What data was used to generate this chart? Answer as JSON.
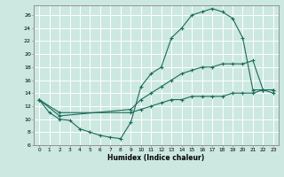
{
  "xlabel": "Humidex (Indice chaleur)",
  "background_color": "#cce8e0",
  "line_color": "#1a6b5a",
  "xlim": [
    -0.5,
    23.5
  ],
  "ylim": [
    6,
    27.5
  ],
  "xticks": [
    0,
    1,
    2,
    3,
    4,
    5,
    6,
    7,
    8,
    9,
    10,
    11,
    12,
    13,
    14,
    15,
    16,
    17,
    18,
    19,
    20,
    21,
    22,
    23
  ],
  "yticks": [
    6,
    8,
    10,
    12,
    14,
    16,
    18,
    20,
    22,
    24,
    26
  ],
  "curve1_x": [
    0,
    1,
    2,
    3,
    4,
    5,
    6,
    7,
    8,
    9,
    10,
    11,
    12,
    13,
    14,
    15,
    16,
    17,
    18,
    19,
    20,
    21,
    22,
    23
  ],
  "curve1_y": [
    13,
    11,
    10,
    9.8,
    8.5,
    8,
    7.5,
    7.2,
    7.0,
    9.5,
    15,
    17,
    18,
    22.5,
    24,
    26,
    26.5,
    27,
    26.5,
    25.5,
    22.5,
    14.5,
    14.5,
    14
  ],
  "curve2_x": [
    0,
    2,
    9,
    10,
    11,
    12,
    13,
    14,
    15,
    16,
    17,
    18,
    19,
    20,
    21,
    22,
    23
  ],
  "curve2_y": [
    13,
    10.5,
    11.5,
    13,
    14,
    15,
    16,
    17,
    17.5,
    18,
    18,
    18.5,
    18.5,
    18.5,
    19,
    14.5,
    14.5
  ],
  "curve3_x": [
    0,
    2,
    9,
    10,
    11,
    12,
    13,
    14,
    15,
    16,
    17,
    18,
    19,
    20,
    21,
    22,
    23
  ],
  "curve3_y": [
    13,
    11,
    11,
    11.5,
    12,
    12.5,
    13,
    13,
    13.5,
    13.5,
    13.5,
    13.5,
    14,
    14,
    14,
    14.5,
    14.5
  ]
}
